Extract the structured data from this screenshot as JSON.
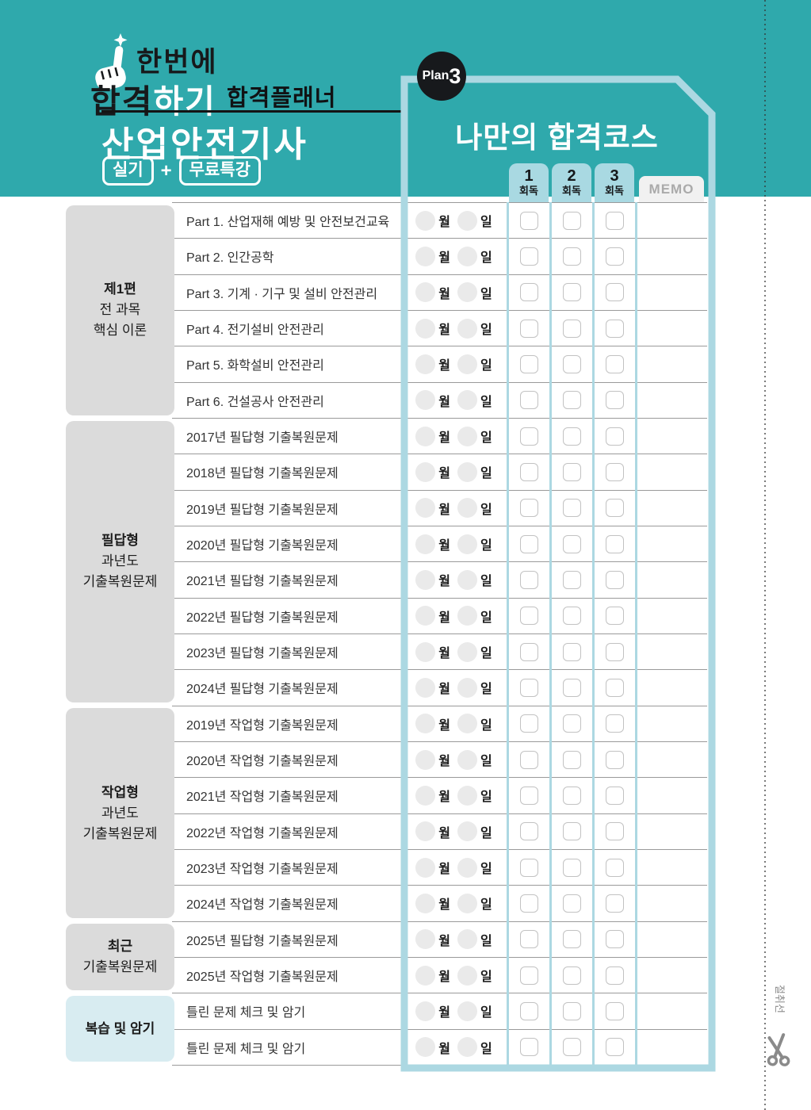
{
  "colors": {
    "header_teal": "#2FA9AC",
    "panel_border_blue": "#ACD8E2",
    "tab_blue": "#A9D9E2",
    "section_gray": "#DBDBDB",
    "section_cyan": "#D8ECF1",
    "memo_tab_gray": "#F1F1F1",
    "row_line": "#9a9a9a",
    "badge_black": "#17191C"
  },
  "header": {
    "logo_line1": "한번에",
    "logo_line2_black": "합격",
    "logo_line2_white": "하기",
    "planner_label": "합격플래너",
    "title": "산업안전기사",
    "badge_left": "실기",
    "plus": "+",
    "badge_right": "무료특강"
  },
  "panel": {
    "plan_prefix": "Plan",
    "plan_number": "3",
    "title": "나만의 합격코스",
    "columns": [
      {
        "num": "1",
        "label": "회독"
      },
      {
        "num": "2",
        "label": "회독"
      },
      {
        "num": "3",
        "label": "회독"
      }
    ],
    "memo_label": "MEMO",
    "month_label": "월",
    "day_label": "일"
  },
  "sections": [
    {
      "lines": [
        "제1편",
        "전 과목",
        "핵심 이론"
      ],
      "rows": 6,
      "style": "gray"
    },
    {
      "lines": [
        "필답형",
        "과년도",
        "기출복원문제"
      ],
      "rows": 8,
      "style": "gray"
    },
    {
      "lines": [
        "작업형",
        "과년도",
        "기출복원문제"
      ],
      "rows": 6,
      "style": "gray"
    },
    {
      "lines": [
        "최근",
        "기출복원문제"
      ],
      "rows": 2,
      "style": "gray"
    },
    {
      "lines": [
        "복습 및 암기"
      ],
      "rows": 2,
      "style": "cyan"
    }
  ],
  "tasks": [
    "Part 1. 산업재해 예방 및 안전보건교육",
    "Part 2. 인간공학",
    "Part 3. 기계 · 기구 및 설비 안전관리",
    "Part 4. 전기설비 안전관리",
    "Part 5. 화학설비 안전관리",
    "Part 6. 건설공사 안전관리",
    "2017년 필답형 기출복원문제",
    "2018년 필답형 기출복원문제",
    "2019년 필답형 기출복원문제",
    "2020년 필답형 기출복원문제",
    "2021년 필답형 기출복원문제",
    "2022년 필답형 기출복원문제",
    "2023년 필답형 기출복원문제",
    "2024년 필답형 기출복원문제",
    "2019년 작업형 기출복원문제",
    "2020년 작업형 기출복원문제",
    "2021년 작업형 기출복원문제",
    "2022년 작업형 기출복원문제",
    "2023년 작업형 기출복원문제",
    "2024년 작업형 기출복원문제",
    "2025년 필답형 기출복원문제",
    "2025년 작업형 기출복원문제",
    "틀린 문제 체크 및 암기",
    "틀린 문제 체크 및 암기"
  ],
  "cut_label": "절취선"
}
